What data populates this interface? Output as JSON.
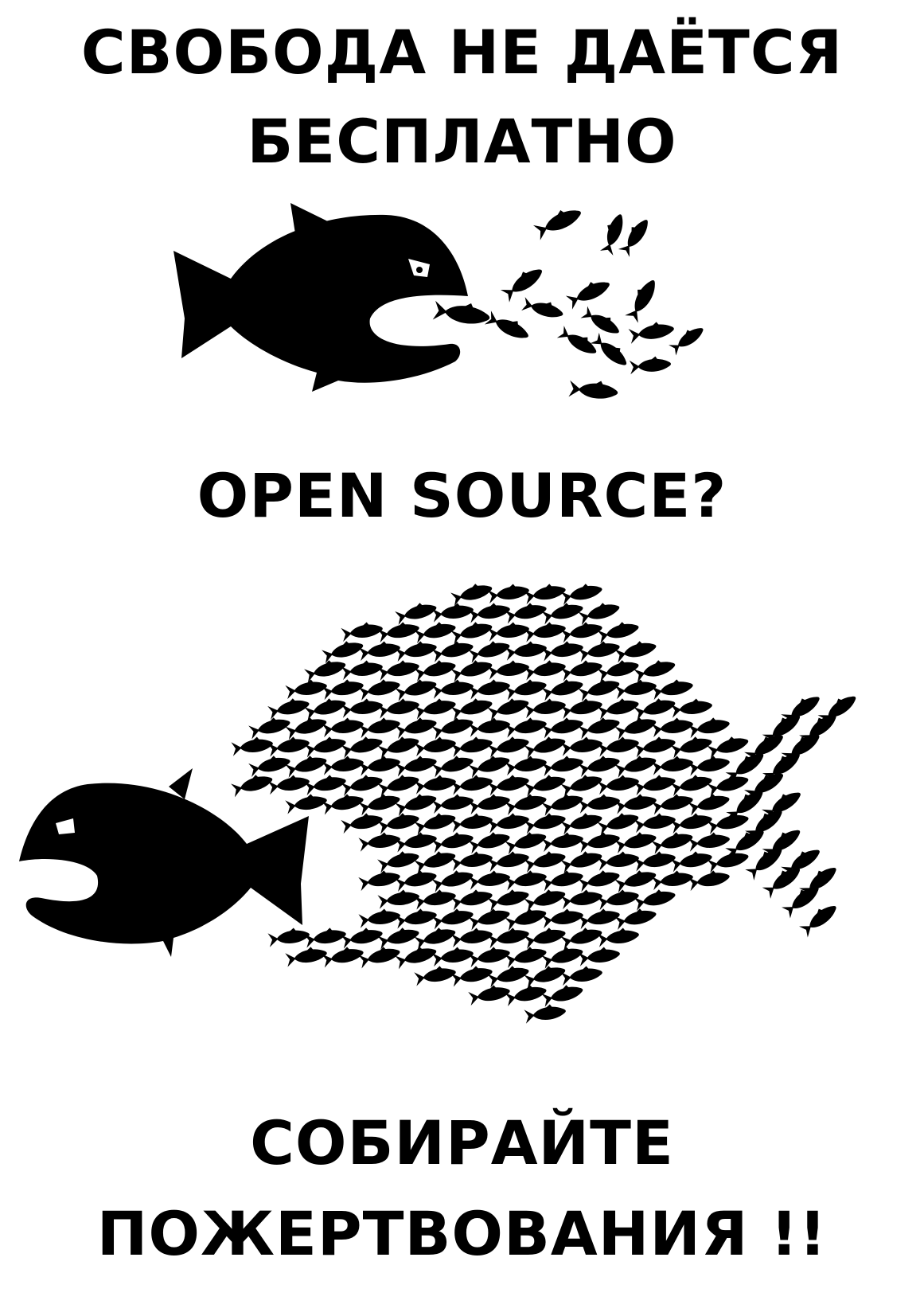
{
  "poster": {
    "title_line_1": "СВОБОДА НЕ ДАЁТСЯ",
    "title_line_2": "БЕСПЛАТНО",
    "question": "OPEN SOURCE?",
    "call_line_1": "СОБИРАЙТЕ",
    "call_line_2": "ПОЖЕРТВОВАНИЯ !!"
  },
  "illustrations": {
    "top": "big-fish-eating-small-fish",
    "bottom": "school-of-small-fish-chasing-big-fish"
  },
  "colors": {
    "ink": "#000000",
    "background": "#ffffff"
  }
}
